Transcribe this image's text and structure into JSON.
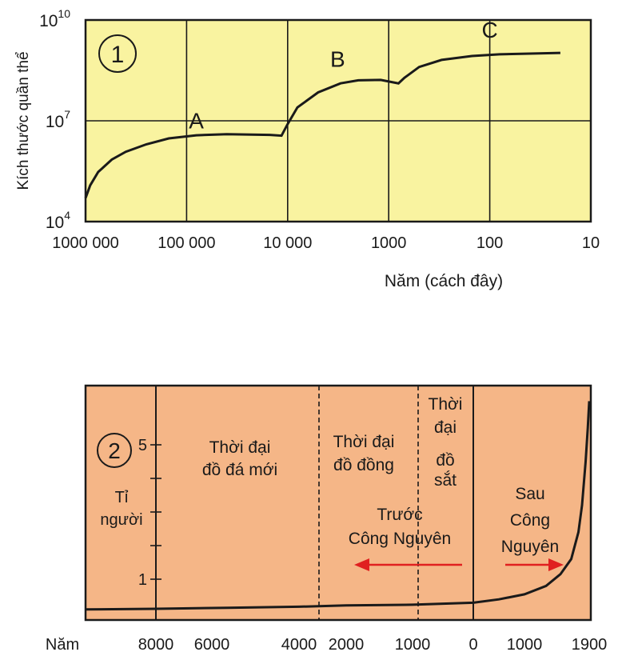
{
  "chart_data": [
    {
      "type": "line",
      "panel_label": "1",
      "ylabel": "Kích thước quần thể",
      "xlabel": "Năm (cách đây)",
      "x_scale": "log",
      "y_scale": "log",
      "x_ticks": [
        {
          "value": 1000000,
          "label": "1000 000"
        },
        {
          "value": 100000,
          "label": "100 000"
        },
        {
          "value": 10000,
          "label": "10 000"
        },
        {
          "value": 1000,
          "label": "1000"
        },
        {
          "value": 100,
          "label": "100"
        },
        {
          "value": 10,
          "label": "10"
        }
      ],
      "y_ticks": [
        {
          "value": 10000,
          "base": "10",
          "exp": "4"
        },
        {
          "value": 10000000,
          "base": "10",
          "exp": "7"
        },
        {
          "value": 10000000000,
          "base": "10",
          "exp": "10"
        }
      ],
      "xlim": [
        1000000,
        10
      ],
      "ylim": [
        10000,
        10000000000
      ],
      "grid": true,
      "background": "#f9f3a0",
      "line_color": "#1a1a1a",
      "series": [
        {
          "x": [
            1000000,
            900000,
            750000,
            550000,
            400000,
            250000,
            150000,
            80000,
            40000,
            15000,
            11500,
            10000,
            8000,
            5000,
            3000,
            2000,
            1200,
            800,
            700,
            500,
            300,
            150,
            80,
            40,
            20
          ],
          "y": [
            50000,
            120000,
            300000,
            700000,
            1200000,
            2000000,
            3000000,
            3700000,
            4000000,
            3800000,
            3600000,
            8000000,
            25000000,
            70000000,
            130000000,
            160000000,
            165000000,
            130000000,
            190000000,
            400000000,
            650000000,
            850000000,
            950000000,
            1000000000,
            1050000000
          ]
        }
      ],
      "annotations": [
        {
          "text": "A",
          "x": 80000,
          "y": 6000000
        },
        {
          "text": "B",
          "x": 3200,
          "y": 400000000
        },
        {
          "text": "C",
          "x": 100,
          "y": 3000000000
        }
      ]
    },
    {
      "type": "line",
      "panel_label": "2",
      "ylabel": "Tỉ người",
      "xlabel": "Năm",
      "x_ticks": [
        {
          "value": -8000,
          "label": "8000"
        },
        {
          "value": -6000,
          "label": "6000"
        },
        {
          "value": -4000,
          "label": "4000"
        },
        {
          "value": -2000,
          "label": "2000"
        },
        {
          "value": -1000,
          "label": "1000"
        },
        {
          "value": 0,
          "label": "0"
        },
        {
          "value": 1000,
          "label": "1000"
        },
        {
          "value": 1900,
          "label": "1900"
        }
      ],
      "y_ticks": [
        {
          "value": 1,
          "label": "1"
        },
        {
          "value": 2,
          "label": ""
        },
        {
          "value": 3,
          "label": ""
        },
        {
          "value": 4,
          "label": ""
        },
        {
          "value": 5,
          "label": "5"
        }
      ],
      "ylim": [
        0,
        6
      ],
      "background": "#f5b687",
      "line_color": "#1a1a1a",
      "arrow_color": "#e02020",
      "series": [
        {
          "x": [
            -9500,
            -8000,
            -6000,
            -4000,
            -2000,
            -1000,
            0,
            500,
            1000,
            1300,
            1500,
            1650,
            1750,
            1800,
            1850,
            1880,
            1900
          ],
          "y": [
            0.1,
            0.12,
            0.15,
            0.18,
            0.22,
            0.24,
            0.3,
            0.4,
            0.55,
            0.8,
            1.15,
            1.6,
            2.4,
            3.2,
            4.5,
            5.5,
            6.3
          ]
        }
      ],
      "eras": {
        "neolithic": [
          "Thời đại",
          "đồ đá mới"
        ],
        "bronze": [
          "Thời đại",
          "đồ đồng"
        ],
        "iron": [
          "Thời",
          "đại",
          "đồ",
          "sắt"
        ],
        "bc": [
          "Trước",
          "Công Nguyên"
        ],
        "ad": [
          "Sau",
          "Công",
          "Nguyên"
        ]
      }
    }
  ]
}
